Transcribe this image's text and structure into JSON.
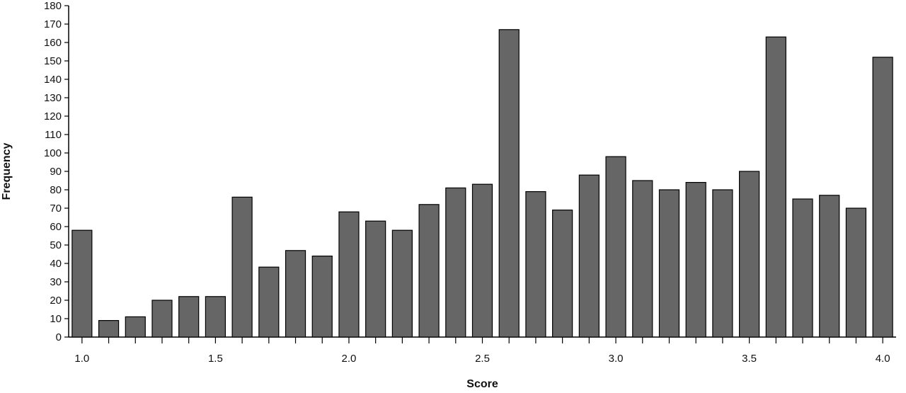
{
  "chart_data": {
    "type": "bar",
    "title": "",
    "xlabel": "Score",
    "ylabel": "Frequency",
    "ylim": [
      0,
      180
    ],
    "yticks": [
      0,
      10,
      20,
      30,
      40,
      50,
      60,
      70,
      80,
      90,
      100,
      110,
      120,
      130,
      140,
      150,
      160,
      170,
      180
    ],
    "xlim": [
      0.95,
      4.05
    ],
    "xticks": [
      1.0,
      1.1,
      1.2,
      1.3,
      1.4,
      1.5,
      1.6,
      1.7,
      1.8,
      1.9,
      2.0,
      2.1,
      2.2,
      2.3,
      2.4,
      2.5,
      2.6,
      2.7,
      2.8,
      2.9,
      3.0,
      3.1,
      3.2,
      3.3,
      3.4,
      3.5,
      3.6,
      3.7,
      3.8,
      3.9,
      4.0
    ],
    "xtick_labels": [
      {
        "value": 1.0,
        "label": "1.0"
      },
      {
        "value": 1.5,
        "label": "1.5"
      },
      {
        "value": 2.0,
        "label": "2.0"
      },
      {
        "value": 2.5,
        "label": "2.5"
      },
      {
        "value": 3.0,
        "label": "3.0"
      },
      {
        "value": 3.5,
        "label": "3.5"
      },
      {
        "value": 4.0,
        "label": "4.0"
      }
    ],
    "x": [
      1.0,
      1.1,
      1.2,
      1.3,
      1.4,
      1.5,
      1.6,
      1.7,
      1.8,
      1.9,
      2.0,
      2.1,
      2.2,
      2.3,
      2.4,
      2.5,
      2.6,
      2.7,
      2.8,
      2.9,
      3.0,
      3.1,
      3.2,
      3.3,
      3.4,
      3.5,
      3.6,
      3.7,
      3.8,
      3.9,
      4.0
    ],
    "values": [
      58,
      9,
      11,
      20,
      22,
      22,
      76,
      38,
      47,
      44,
      68,
      63,
      58,
      72,
      81,
      83,
      167,
      79,
      69,
      88,
      98,
      85,
      80,
      84,
      80,
      90,
      163,
      75,
      77,
      70,
      152
    ],
    "bar_color": "#666666",
    "bar_edge_color": "#000000",
    "grid": false,
    "legend": "none"
  }
}
